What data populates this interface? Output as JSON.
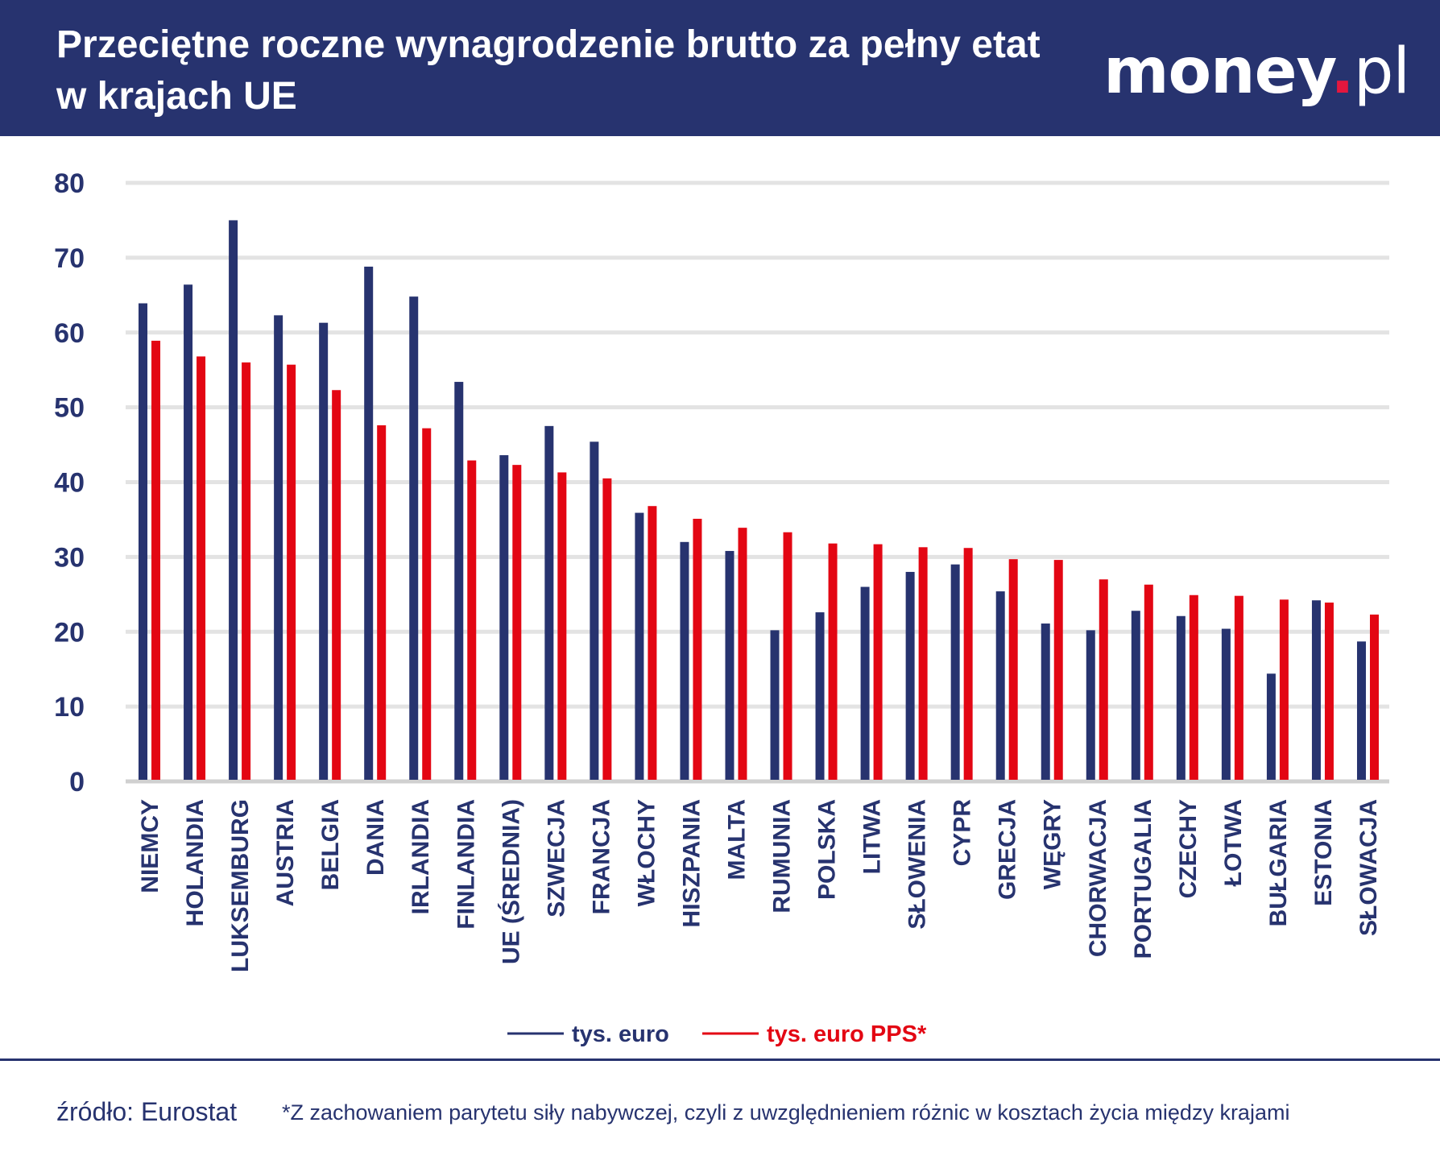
{
  "header": {
    "title": "Przeciętne roczne wynagrodzenie brutto za pełny etat w krajach UE",
    "logo": "money.pl"
  },
  "colors": {
    "header_bg": "#27336f",
    "series_euro": "#27336f",
    "series_pps": "#e30613",
    "grid": "#e3e3e3"
  },
  "chart_data": {
    "type": "bar",
    "title": "Przeciętne roczne wynagrodzenie brutto za pełny etat w krajach UE",
    "xlabel": "",
    "ylabel": "",
    "ylim": [
      0,
      80
    ],
    "yticks": [
      0,
      10,
      20,
      30,
      40,
      50,
      60,
      70,
      80
    ],
    "grid": true,
    "legend_position": "bottom",
    "categories": [
      "NIEMCY",
      "HOLANDIA",
      "LUKSEMBURG",
      "AUSTRIA",
      "BELGIA",
      "DANIA",
      "IRLANDIA",
      "FINLANDIA",
      "UE (ŚREDNIA)",
      "SZWECJA",
      "FRANCJA",
      "WŁOCHY",
      "HISZPANIA",
      "MALTA",
      "RUMUNIA",
      "POLSKA",
      "LITWA",
      "SŁOWENIA",
      "CYPR",
      "GRECJA",
      "WĘGRY",
      "CHORWACJA",
      "PORTUGALIA",
      "CZECHY",
      "ŁOTWA",
      "BUŁGARIA",
      "ESTONIA",
      "SŁOWACJA"
    ],
    "series": [
      {
        "name": "tys. euro",
        "color": "#27336f",
        "values": [
          63.9,
          66.4,
          75.0,
          62.3,
          61.3,
          68.8,
          64.8,
          53.4,
          43.6,
          47.5,
          45.4,
          35.9,
          32.0,
          30.8,
          20.2,
          22.6,
          26.0,
          28.0,
          29.0,
          25.4,
          21.1,
          20.2,
          22.8,
          22.1,
          20.4,
          14.4,
          24.2,
          18.7
        ]
      },
      {
        "name": "tys. euro PPS*",
        "color": "#e30613",
        "values": [
          58.9,
          56.8,
          56.0,
          55.7,
          52.3,
          47.6,
          47.2,
          42.9,
          42.3,
          41.3,
          40.5,
          36.8,
          35.1,
          33.9,
          33.3,
          31.8,
          31.7,
          31.3,
          31.2,
          29.7,
          29.6,
          27.0,
          26.3,
          24.9,
          24.8,
          24.3,
          23.9,
          22.3
        ]
      }
    ]
  },
  "footer": {
    "source": "źródło: Eurostat",
    "note": "*Z zachowaniem parytetu siły nabywczej, czyli z uwzględnieniem różnic w kosztach życia między krajami"
  }
}
